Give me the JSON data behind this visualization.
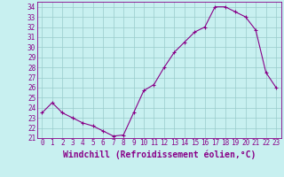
{
  "x": [
    0,
    1,
    2,
    3,
    4,
    5,
    6,
    7,
    8,
    9,
    10,
    11,
    12,
    13,
    14,
    15,
    16,
    17,
    18,
    19,
    20,
    21,
    22,
    23
  ],
  "y": [
    23.5,
    24.5,
    23.5,
    23.0,
    22.5,
    22.2,
    21.7,
    21.2,
    21.3,
    23.5,
    25.7,
    26.3,
    28.0,
    29.5,
    30.5,
    31.5,
    32.0,
    34.0,
    34.0,
    33.5,
    33.0,
    31.7,
    27.5,
    26.0
  ],
  "xlabel": "Windchill (Refroidissement éolien,°C)",
  "ylim": [
    21,
    34.5
  ],
  "yticks": [
    21,
    22,
    23,
    24,
    25,
    26,
    27,
    28,
    29,
    30,
    31,
    32,
    33,
    34
  ],
  "xticks": [
    0,
    1,
    2,
    3,
    4,
    5,
    6,
    7,
    8,
    9,
    10,
    11,
    12,
    13,
    14,
    15,
    16,
    17,
    18,
    19,
    20,
    21,
    22,
    23
  ],
  "line_color": "#880088",
  "marker": "+",
  "bg_color": "#c8f0f0",
  "grid_color": "#99cccc",
  "tick_label_fontsize": 5.5,
  "xlabel_fontsize": 7.0
}
